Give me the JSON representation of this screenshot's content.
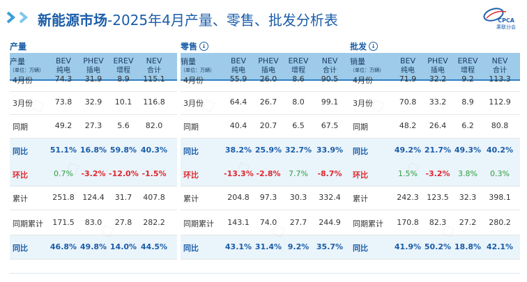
{
  "title": {
    "bold": "新能源市场",
    "rest": "-2025年4月产量、零售、批发分析表"
  },
  "logo": {
    "text": "CPCA",
    "sub": "乘联分会"
  },
  "sections": [
    {
      "key": "production",
      "label": "产量",
      "has_arrow": false,
      "header_label": "产量",
      "header_unit": "（单位：万辆）"
    },
    {
      "key": "retail",
      "label": "零售",
      "has_arrow": true,
      "header_label": "销量",
      "header_unit": "（单位：万辆）"
    },
    {
      "key": "wholesale",
      "label": "批发",
      "has_arrow": true,
      "header_label": "销量",
      "header_unit": "（单位：万辆）"
    }
  ],
  "columns": [
    {
      "top": "BEV",
      "bottom": "纯电"
    },
    {
      "top": "PHEV",
      "bottom": "插电"
    },
    {
      "top": "EREV",
      "bottom": "增程"
    },
    {
      "top": "NEV",
      "bottom": "合计"
    }
  ],
  "row_labels": [
    "4月份",
    "3月份",
    "同期",
    "同比",
    "环比",
    "累计",
    "同期累计",
    "同比"
  ],
  "row_styles": [
    "normal",
    "normal",
    "normal",
    "blue",
    "red",
    "normal",
    "normal",
    "blue"
  ],
  "production": [
    [
      "74.3",
      "31.9",
      "8.9",
      "115.1"
    ],
    [
      "73.8",
      "32.9",
      "10.1",
      "116.8"
    ],
    [
      "49.2",
      "27.3",
      "5.6",
      "82.0"
    ],
    [
      "51.1%",
      "16.8%",
      "59.8%",
      "40.3%"
    ],
    [
      "0.7%",
      "-3.2%",
      "-12.0%",
      "-1.5%"
    ],
    [
      "251.8",
      "124.4",
      "31.7",
      "407.8"
    ],
    [
      "171.5",
      "83.0",
      "27.8",
      "282.2"
    ],
    [
      "46.8%",
      "49.8%",
      "14.0%",
      "44.5%"
    ]
  ],
  "retail": [
    [
      "55.9",
      "26.0",
      "8.6",
      "90.5"
    ],
    [
      "64.4",
      "26.7",
      "8.0",
      "99.1"
    ],
    [
      "40.4",
      "20.7",
      "6.5",
      "67.5"
    ],
    [
      "38.2%",
      "25.9%",
      "32.7%",
      "33.9%"
    ],
    [
      "-13.3%",
      "-2.8%",
      "7.7%",
      "-8.7%"
    ],
    [
      "204.8",
      "97.3",
      "30.3",
      "332.4"
    ],
    [
      "143.1",
      "74.0",
      "27.7",
      "244.9"
    ],
    [
      "43.1%",
      "31.4%",
      "9.2%",
      "35.7%"
    ]
  ],
  "wholesale": [
    [
      "71.9",
      "32.2",
      "9.2",
      "113.3"
    ],
    [
      "70.8",
      "33.2",
      "8.9",
      "112.9"
    ],
    [
      "48.2",
      "26.4",
      "6.2",
      "80.8"
    ],
    [
      "49.2%",
      "21.7%",
      "49.3%",
      "40.2%"
    ],
    [
      "1.5%",
      "-3.2%",
      "3.8%",
      "0.3%"
    ],
    [
      "242.3",
      "123.5",
      "32.3",
      "398.1"
    ],
    [
      "170.8",
      "82.3",
      "27.2",
      "280.2"
    ],
    [
      "41.9%",
      "50.2%",
      "18.8%",
      "42.1%"
    ]
  ],
  "colors": {
    "title": "#1a5da8",
    "header_bg": "#9dcbe9",
    "highlight_row": "#eaf4fb",
    "positive": "#1a5da8",
    "mom_label": "#e0262d",
    "mom_positive": "#2f9e3f",
    "mom_negative": "#e0262d"
  }
}
